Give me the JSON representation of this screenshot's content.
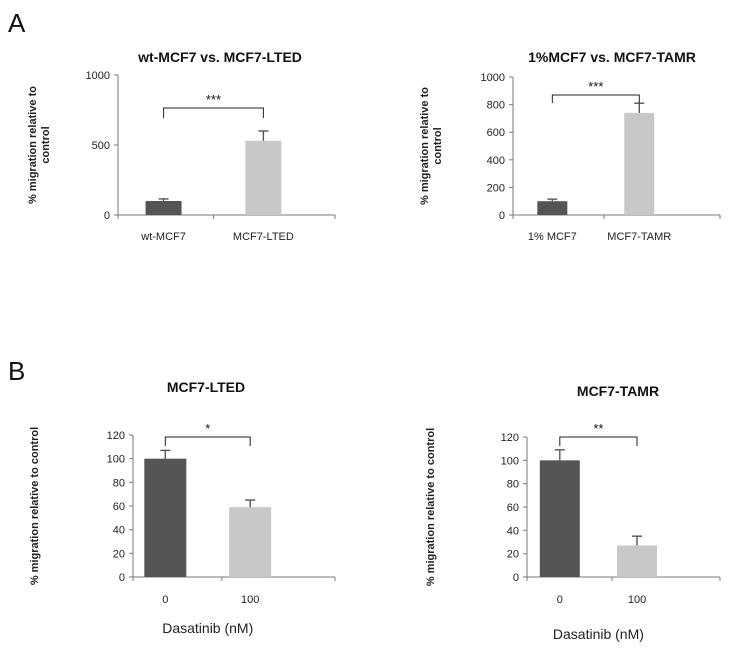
{
  "panels": [
    {
      "letter": "A"
    },
    {
      "letter": "B"
    }
  ],
  "colors": {
    "dark_bar": "#555555",
    "light_bar": "#c8c8c8"
  },
  "chart_data": [
    {
      "type": "bar",
      "panel": "A",
      "title": "wt-MCF7 vs. MCF7-LTED",
      "categories": [
        "wt-MCF7",
        "MCF7-LTED"
      ],
      "values": [
        100,
        530
      ],
      "errors": [
        15,
        70
      ],
      "ylabel": "% migration relative to control",
      "xlabel": "",
      "ylim": [
        0,
        1000
      ],
      "yticks": [
        0,
        500,
        1000
      ],
      "yticklabels": [
        "0",
        "500",
        "1000"
      ],
      "significance": "***",
      "grid": false
    },
    {
      "type": "bar",
      "panel": "A",
      "title": "1%MCF7 vs. MCF7-TAMR",
      "categories": [
        "1% MCF7",
        "MCF7-TAMR"
      ],
      "values": [
        100,
        740
      ],
      "errors": [
        15,
        70
      ],
      "ylabel": "% migration relative to control",
      "xlabel": "",
      "ylim": [
        0,
        1000
      ],
      "yticks": [
        0,
        200,
        400,
        600,
        800,
        1000
      ],
      "yticklabels": [
        "0",
        "200",
        "400",
        "600",
        "800",
        "1000"
      ],
      "significance": "***",
      "grid": false
    },
    {
      "type": "bar",
      "panel": "B",
      "title": "MCF7-LTED",
      "categories": [
        "0",
        "100"
      ],
      "values": [
        100,
        59
      ],
      "errors": [
        7,
        6
      ],
      "ylabel": "% migration relative to control",
      "xlabel": "Dasatinib (nM)",
      "ylim": [
        0,
        120
      ],
      "yticks": [
        0,
        20,
        40,
        60,
        80,
        100,
        120
      ],
      "yticklabels": [
        "0",
        "20",
        "40",
        "60",
        "80",
        "100",
        "120"
      ],
      "significance": "*",
      "grid": false
    },
    {
      "type": "bar",
      "panel": "B",
      "title": "MCF7-TAMR",
      "categories": [
        "0",
        "100"
      ],
      "values": [
        100,
        27
      ],
      "errors": [
        9,
        8
      ],
      "ylabel": "% migration relative to control",
      "xlabel": "Dasatinib (nM)",
      "ylim": [
        0,
        120
      ],
      "yticks": [
        0,
        20,
        40,
        60,
        80,
        100,
        120
      ],
      "yticklabels": [
        "0",
        "20",
        "40",
        "60",
        "80",
        "100",
        "120"
      ],
      "significance": "**",
      "grid": false
    }
  ]
}
